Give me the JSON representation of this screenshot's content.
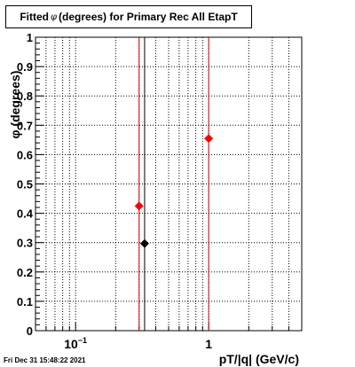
{
  "title": {
    "prefix": "Fitted",
    "symbol": "φ",
    "suffix": "(degrees) for Primary Rec All EtapT"
  },
  "timestamp": "Fri Dec 31 15:48:22 2021",
  "chart_data": {
    "type": "scatter",
    "title": "Fitted φ (degrees) for Primary Rec All EtapT",
    "xlabel": "pT/|q| (GeV/c)",
    "ylabel": "φ (degrees)",
    "xscale": "log",
    "xlim": [
      0.05,
      5
    ],
    "ylim": [
      0,
      1
    ],
    "grid": true,
    "ytick_labels": [
      "0",
      "0.1",
      "0.2",
      "0.3",
      "0.4",
      "0.5",
      "0.6",
      "0.7",
      "0.8",
      "0.9",
      "1"
    ],
    "xtick_labels": [
      {
        "value": 0.1,
        "label": "10",
        "exponent": "−1"
      },
      {
        "value": 1,
        "label": "1",
        "exponent": ""
      }
    ],
    "vertical_lines": [
      {
        "x": 0.3,
        "color": "#e00000"
      },
      {
        "x": 0.33,
        "color": "#000000"
      },
      {
        "x": 1.0,
        "color": "#e00000"
      }
    ],
    "series": [
      {
        "color": "#ff0000",
        "marker": "diamond",
        "points": [
          {
            "x": 0.3,
            "y": 0.425
          },
          {
            "x": 1.0,
            "y": 0.655
          }
        ]
      },
      {
        "color": "#000000",
        "marker": "diamond",
        "points": [
          {
            "x": 0.33,
            "y": 0.297
          }
        ]
      }
    ]
  }
}
